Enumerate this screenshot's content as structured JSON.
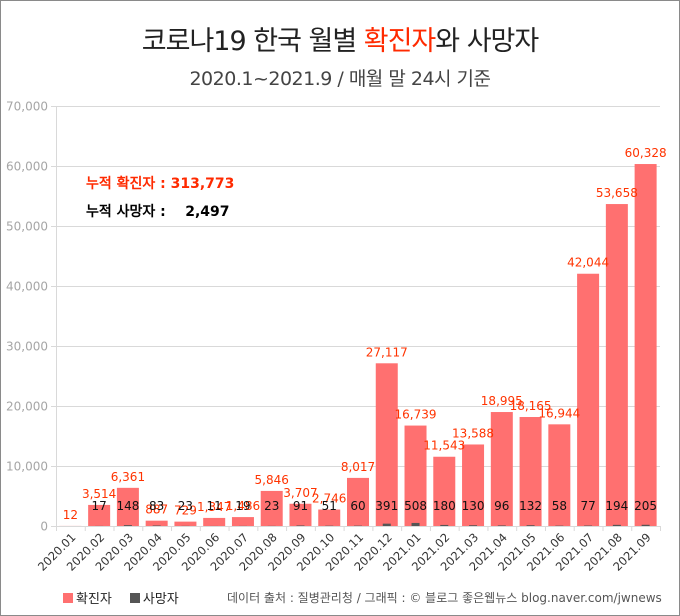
{
  "title": {
    "part1": "코로나19 한국 월별 ",
    "highlight": "확진자",
    "part2": "와 사망자"
  },
  "subtitle": "2020.1~2021.9  / 매월 말 24시 기준",
  "summary": {
    "confirmed_label": "누적 확진자 : ",
    "confirmed_value": "313,773",
    "deaths_label": "누적 사망자 :    ",
    "deaths_value": "2,497"
  },
  "legend": {
    "confirmed": "확진자",
    "deaths": "사망자"
  },
  "source": "데이터 출처 : 질병관리청 / 그래픽 : © 블로그 좋은웹뉴스  blog.naver.com/jwnews",
  "colors": {
    "confirmed": "#ff7070",
    "deaths": "#555555",
    "confirmed_label": "#ff3300",
    "grid": "#d9d9d9"
  },
  "chart_data": {
    "type": "bar",
    "title": "코로나19 한국 월별 확진자와 사망자",
    "subtitle": "2020.1~2021.9 / 매월 말 24시 기준",
    "xlabel": "",
    "ylabel": "",
    "ylim": [
      0,
      70000
    ],
    "yticks": [
      0,
      10000,
      20000,
      30000,
      40000,
      50000,
      60000,
      70000
    ],
    "ytick_labels": [
      "0",
      "10,000",
      "20,000",
      "30,000",
      "40,000",
      "50,000",
      "60,000",
      "70,000"
    ],
    "grid": true,
    "legend_position": "bottom-left",
    "categories": [
      "2020.01",
      "2020.02",
      "2020.03",
      "2020.04",
      "2020.05",
      "2020.06",
      "2020.07",
      "2020.08",
      "2020.09",
      "2020.10",
      "2020.11",
      "2020.12",
      "2021.01",
      "2021.02",
      "2021.03",
      "2021.04",
      "2021.05",
      "2021.06",
      "2021.07",
      "2021.08",
      "2021.09"
    ],
    "series": [
      {
        "name": "확진자",
        "values": [
          12,
          3514,
          6361,
          887,
          729,
          1347,
          1486,
          5846,
          3707,
          2746,
          8017,
          27117,
          16739,
          11543,
          13588,
          18995,
          18165,
          16944,
          42044,
          53658,
          60328
        ],
        "labels": [
          "12",
          "3,514",
          "6,361",
          "887",
          "729",
          "1,347",
          "1,486",
          "5,846",
          "3,707",
          "2,746",
          "8,017",
          "27,117",
          "16,739",
          "11,543",
          "13,588",
          "18,995",
          "18,165",
          "16,944",
          "42,044",
          "53,658",
          "60,328"
        ]
      },
      {
        "name": "사망자",
        "values": [
          0,
          17,
          148,
          83,
          23,
          11,
          19,
          23,
          91,
          51,
          60,
          391,
          508,
          180,
          130,
          96,
          132,
          58,
          77,
          194,
          205
        ],
        "labels": [
          "",
          "17",
          "148",
          "83",
          "23",
          "11",
          "19",
          "23",
          "91",
          "51",
          "60",
          "391",
          "508",
          "180",
          "130",
          "96",
          "132",
          "58",
          "77",
          "194",
          "205"
        ]
      }
    ],
    "annotations": [
      "누적 확진자 : 313,773",
      "누적 사망자 : 2,497"
    ]
  }
}
